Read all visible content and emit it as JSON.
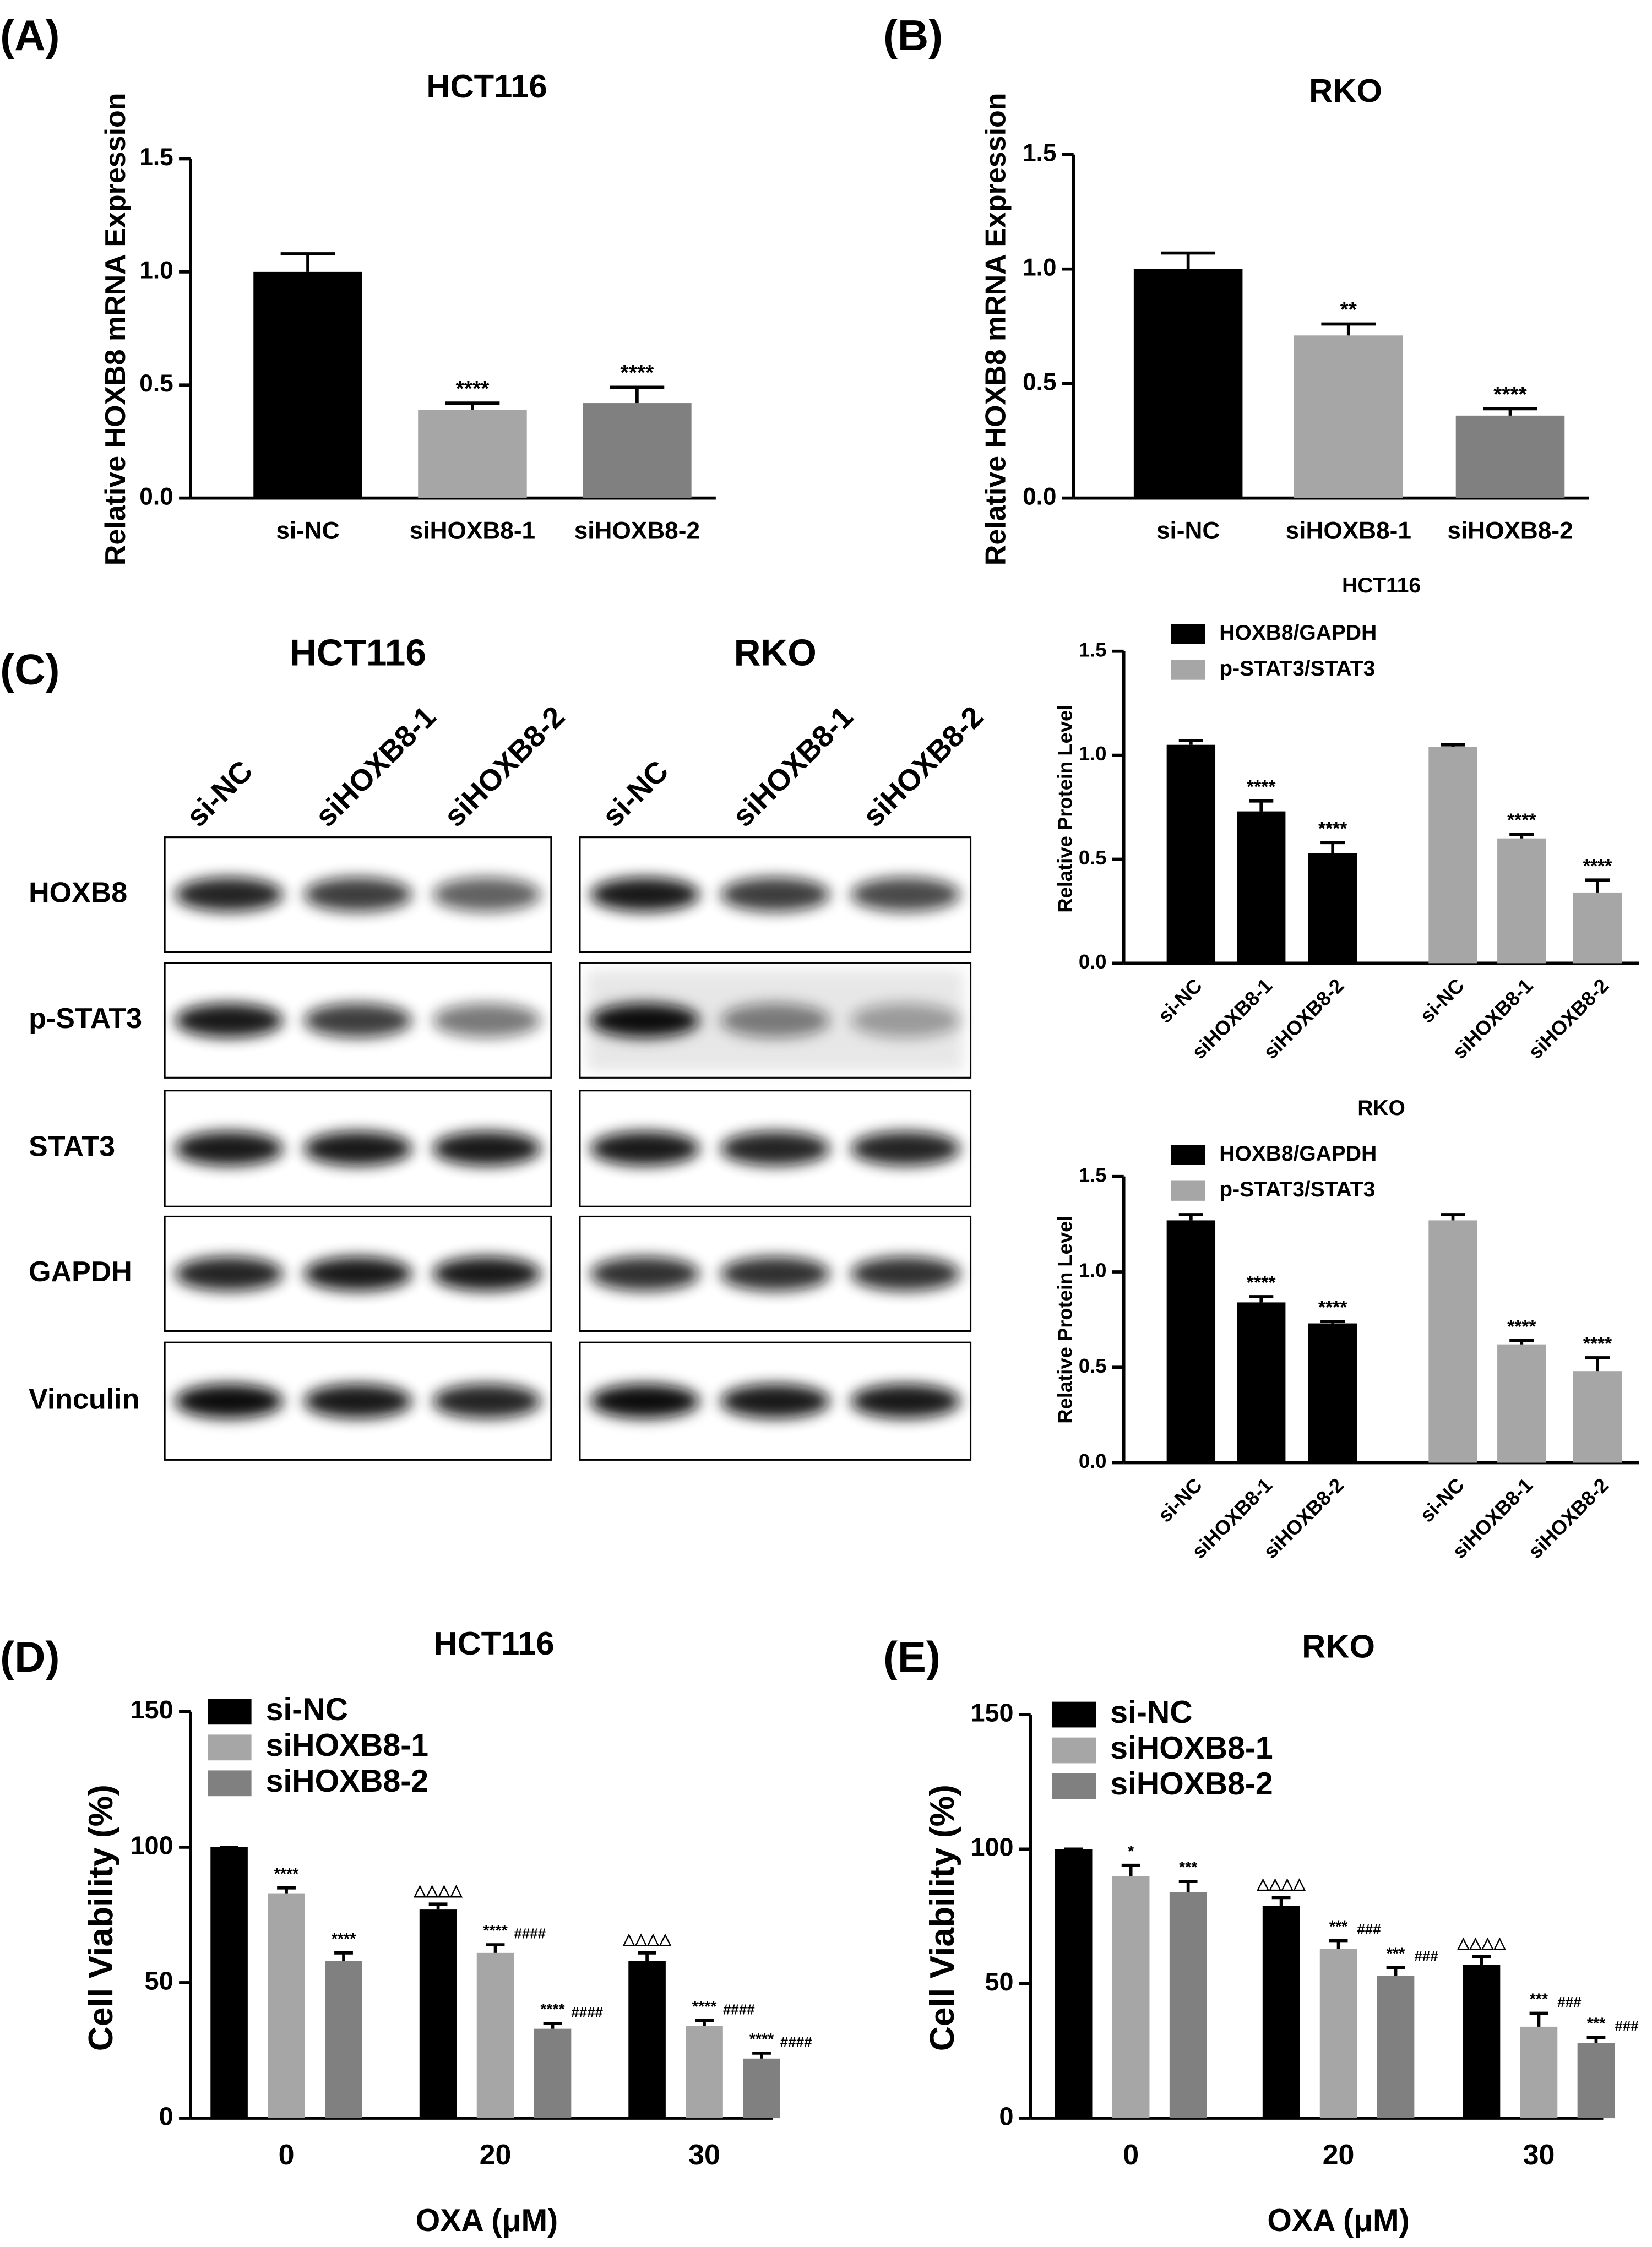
{
  "chart_data": [
    {
      "type": "bar",
      "label": "(A)",
      "title": "HCT116",
      "y_label": "Relative HOXB8 mRNA Expression",
      "categories": [
        "si-NC",
        "siHOXB8-1",
        "siHOXB8-2"
      ],
      "values": [
        1.0,
        0.39,
        0.42
      ],
      "errors": [
        0.08,
        0.03,
        0.07
      ],
      "colors": [
        "#000000",
        "#a6a6a6",
        "#808080"
      ],
      "annotations": [
        null,
        "****",
        "****"
      ],
      "ylim": [
        0,
        1.5
      ],
      "yticks": [
        {
          "value": 0,
          "label": "0.0"
        },
        0.5,
        {
          "value": 1,
          "label": "1.0"
        },
        1.5
      ]
    },
    {
      "type": "bar",
      "label": "(B)",
      "title": "RKO",
      "y_label": "Relative HOXB8 mRNA Expression",
      "categories": [
        "si-NC",
        "siHOXB8-1",
        "siHOXB8-2"
      ],
      "values": [
        1.0,
        0.71,
        0.36
      ],
      "errors": [
        0.07,
        0.05,
        0.03
      ],
      "colors": [
        "#000000",
        "#a6a6a6",
        "#808080"
      ],
      "annotations": [
        null,
        "**",
        "****"
      ],
      "ylim": [
        0,
        1.5
      ],
      "yticks": [
        {
          "value": 0,
          "label": "0.0"
        },
        0.5,
        {
          "value": 1,
          "label": "1.0"
        },
        1.5
      ]
    },
    {
      "type": "series_bar",
      "title": "HCT116",
      "y_label": "Relative Protein Level",
      "categories": [
        "si-NC",
        "siHOXB8-1",
        "siHOXB8-2"
      ],
      "series": [
        {
          "name": "HOXB8/GAPDH",
          "color": "#000000",
          "values": [
            1.05,
            0.73,
            0.53
          ],
          "errors": [
            0.02,
            0.05,
            0.05
          ],
          "annotations": [
            null,
            "****",
            "****"
          ]
        },
        {
          "name": "p-STAT3/STAT3",
          "color": "#a6a6a6",
          "values": [
            1.04,
            0.6,
            0.34
          ],
          "errors": [
            0.01,
            0.02,
            0.06
          ],
          "annotations": [
            null,
            "****",
            "****"
          ]
        }
      ],
      "ylim": [
        0,
        1.5
      ],
      "yticks": [
        {
          "value": 0,
          "label": "0.0"
        },
        0.5,
        {
          "value": 1,
          "label": "1.0"
        },
        1.5
      ]
    },
    {
      "type": "series_bar",
      "title": "RKO",
      "y_label": "Relative Protein Level",
      "categories": [
        "si-NC",
        "siHOXB8-1",
        "siHOXB8-2"
      ],
      "series": [
        {
          "name": "HOXB8/GAPDH",
          "color": "#000000",
          "values": [
            1.27,
            0.84,
            0.73
          ],
          "errors": [
            0.03,
            0.03,
            0.01
          ],
          "annotations": [
            null,
            "****",
            "****"
          ]
        },
        {
          "name": "p-STAT3/STAT3",
          "color": "#a6a6a6",
          "values": [
            1.27,
            0.62,
            0.48
          ],
          "errors": [
            0.03,
            0.02,
            0.07
          ],
          "annotations": [
            null,
            "****",
            "****"
          ]
        }
      ],
      "ylim": [
        0,
        1.5
      ],
      "yticks": [
        {
          "value": 0,
          "label": "0.0"
        },
        0.5,
        {
          "value": 1,
          "label": "1.0"
        },
        1.5
      ]
    },
    {
      "type": "grouped_bar",
      "label": "(D)",
      "title": "HCT116",
      "y_label": "Cell Viability (%)",
      "x_label": "OXA (μM)",
      "categories": [
        "0",
        "20",
        "30"
      ],
      "series": [
        {
          "name": "si-NC",
          "color": "#000000",
          "values": [
            100,
            77,
            58
          ],
          "errors": [
            0,
            2,
            3
          ],
          "annotations": [
            null,
            "△△△△",
            "△△△△"
          ],
          "annotations_secondary": [
            null,
            null,
            null
          ]
        },
        {
          "name": "siHOXB8-1",
          "color": "#a6a6a6",
          "values": [
            83,
            61,
            34
          ],
          "errors": [
            2,
            3,
            2
          ],
          "annotations": [
            "****",
            "****",
            "****"
          ],
          "annotations_secondary": [
            null,
            "####",
            "####"
          ]
        },
        {
          "name": "siHOXB8-2",
          "color": "#808080",
          "values": [
            58,
            33,
            22
          ],
          "errors": [
            3,
            2,
            2
          ],
          "annotations": [
            "****",
            "****",
            "****"
          ],
          "annotations_secondary": [
            null,
            "####",
            "####"
          ]
        }
      ],
      "ylim": [
        0,
        150
      ],
      "yticks": [
        0,
        50,
        100,
        150
      ]
    },
    {
      "type": "grouped_bar",
      "label": "(E)",
      "title": "RKO",
      "y_label": "Cell Viability (%)",
      "x_label": "OXA (μM)",
      "categories": [
        "0",
        "20",
        "30"
      ],
      "series": [
        {
          "name": "si-NC",
          "color": "#000000",
          "values": [
            100,
            79,
            57
          ],
          "errors": [
            0,
            3,
            3
          ],
          "annotations": [
            null,
            "△△△△",
            "△△△△"
          ],
          "annotations_secondary": [
            null,
            null,
            null
          ]
        },
        {
          "name": "siHOXB8-1",
          "color": "#a6a6a6",
          "values": [
            90,
            63,
            34
          ],
          "errors": [
            4,
            3,
            5
          ],
          "annotations": [
            "*",
            "***",
            "***"
          ],
          "annotations_secondary": [
            null,
            "###",
            "###"
          ]
        },
        {
          "name": "siHOXB8-2",
          "color": "#808080",
          "values": [
            84,
            53,
            28
          ],
          "errors": [
            4,
            3,
            2
          ],
          "annotations": [
            "***",
            "***",
            "***"
          ],
          "annotations_secondary": [
            null,
            "###",
            "###"
          ]
        }
      ],
      "ylim": [
        0,
        150
      ],
      "yticks": [
        0,
        50,
        100,
        150
      ]
    }
  ],
  "blot": {
    "label": "(C)",
    "cells": [
      "HCT116",
      "RKO"
    ],
    "lanes": [
      "si-NC",
      "siHOXB8-1",
      "siHOXB8-2"
    ],
    "proteins": [
      "HOXB8",
      "p-STAT3",
      "STAT3",
      "GAPDH",
      "Vinculin"
    ]
  }
}
